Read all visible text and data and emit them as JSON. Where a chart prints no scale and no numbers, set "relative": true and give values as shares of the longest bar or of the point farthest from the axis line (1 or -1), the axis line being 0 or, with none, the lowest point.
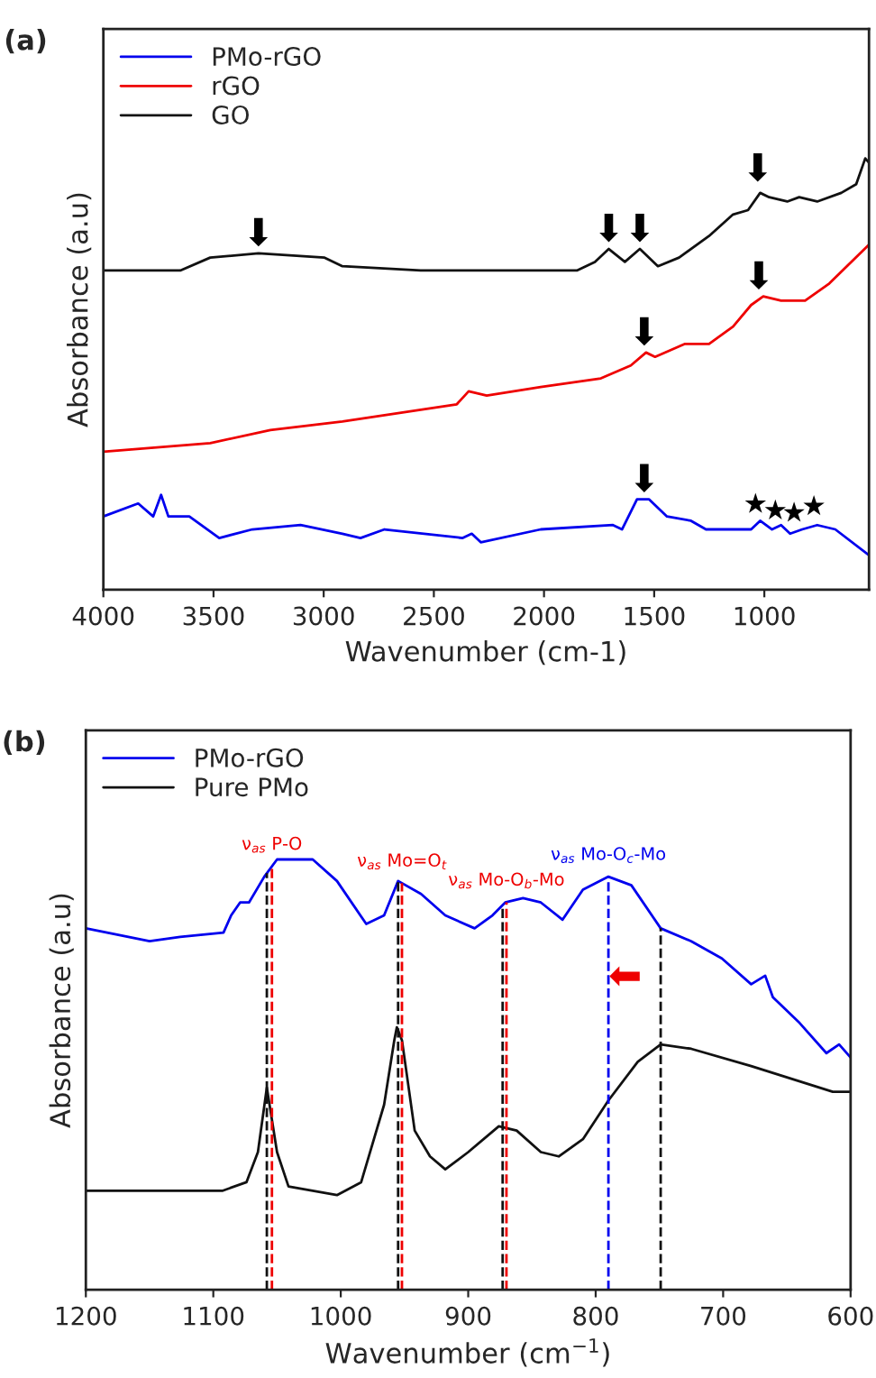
{
  "chart_data": [
    {
      "type": "line",
      "title": "(a)",
      "xlabel": "Wavenumber (cm-1)",
      "ylabel": "Absorbance (a.u)",
      "relative": true,
      "legend": "top left",
      "grid": false,
      "xlim": [
        4000,
        525
      ],
      "xticks": [
        4000,
        3500,
        3000,
        2500,
        2000,
        1500,
        1000
      ],
      "series": [
        {
          "name": "PMo-rGO",
          "color": "#0000ee",
          "x": [
            4000,
            3842,
            3774,
            3738,
            3705,
            3610,
            3474,
            3324,
            3105,
            2915,
            2833,
            2724,
            2369,
            2328,
            2287,
            2015,
            1687,
            1646,
            1578,
            1524,
            1442,
            1333,
            1265,
            1060,
            1019,
            965,
            924,
            883,
            828,
            760,
            678,
            525
          ],
          "values": [
            0.17,
            0.2,
            0.17,
            0.22,
            0.17,
            0.17,
            0.12,
            0.14,
            0.15,
            0.13,
            0.12,
            0.14,
            0.12,
            0.13,
            0.11,
            0.14,
            0.15,
            0.14,
            0.21,
            0.21,
            0.17,
            0.16,
            0.14,
            0.14,
            0.16,
            0.14,
            0.15,
            0.13,
            0.14,
            0.15,
            0.14,
            0.08
          ]
        },
        {
          "name": "rGO",
          "color": "#ee0000",
          "x": [
            4000,
            3515,
            3242,
            2915,
            2396,
            2342,
            2260,
            2015,
            1742,
            1606,
            1537,
            1496,
            1360,
            1251,
            1142,
            1060,
            1005,
            924,
            815,
            705,
            525
          ],
          "values": [
            0.32,
            0.34,
            0.37,
            0.39,
            0.43,
            0.46,
            0.45,
            0.47,
            0.49,
            0.52,
            0.55,
            0.54,
            0.57,
            0.57,
            0.61,
            0.66,
            0.68,
            0.67,
            0.67,
            0.71,
            0.8
          ]
        },
        {
          "name": "GO",
          "color": "#111111",
          "x": [
            4000,
            3651,
            3515,
            3296,
            2996,
            2915,
            2560,
            2287,
            1851,
            1769,
            1706,
            1633,
            1565,
            1483,
            1387,
            1251,
            1142,
            1074,
            1019,
            978,
            896,
            842,
            760,
            651,
            583,
            542,
            525
          ],
          "values": [
            0.74,
            0.74,
            0.77,
            0.78,
            0.77,
            0.75,
            0.74,
            0.74,
            0.74,
            0.76,
            0.79,
            0.76,
            0.79,
            0.75,
            0.77,
            0.82,
            0.87,
            0.88,
            0.92,
            0.91,
            0.9,
            0.91,
            0.9,
            0.92,
            0.94,
            1.0,
            0.99
          ]
        }
      ],
      "annotations": [
        {
          "text": "⬇",
          "x": 3296,
          "y": 0.78
        },
        {
          "text": "⬇",
          "x": 1706,
          "y": 0.79
        },
        {
          "text": "⬇",
          "x": 1565,
          "y": 0.79
        },
        {
          "text": "⬇",
          "x": 1030,
          "y": 0.93
        },
        {
          "text": "⬇",
          "x": 1545,
          "y": 0.55
        },
        {
          "text": "⬇",
          "x": 1025,
          "y": 0.68
        },
        {
          "text": "⬇",
          "x": 1545,
          "y": 0.21
        },
        {
          "text": "★",
          "x": 1040,
          "y": 0.165
        },
        {
          "text": "★",
          "x": 950,
          "y": 0.15
        },
        {
          "text": "★",
          "x": 865,
          "y": 0.145
        },
        {
          "text": "★",
          "x": 775,
          "y": 0.16
        }
      ]
    },
    {
      "type": "line",
      "title": "(b)",
      "xlabel": "Wavenumber (cm$^{−1}$)",
      "ylabel": "Absorbance (a.u)",
      "relative": true,
      "legend": "top left",
      "grid": false,
      "xlim": [
        1200,
        600
      ],
      "xticks": [
        1200,
        1100,
        1000,
        900,
        800,
        700,
        600
      ],
      "series": [
        {
          "name": "PMo-rGO",
          "color": "#0000ee",
          "x": [
            1200,
            1150,
            1126,
            1092,
            1086,
            1079,
            1072,
            1060,
            1050,
            1022,
            1003,
            980,
            966,
            955,
            937,
            918,
            895,
            881,
            871,
            857,
            843,
            826,
            810,
            790,
            772,
            749,
            725,
            701,
            678,
            667,
            661,
            640,
            619,
            609,
            600
          ],
          "values": [
            0.84,
            0.81,
            0.82,
            0.83,
            0.87,
            0.9,
            0.9,
            0.96,
            1.0,
            1.0,
            0.95,
            0.85,
            0.87,
            0.95,
            0.92,
            0.87,
            0.84,
            0.87,
            0.9,
            0.91,
            0.9,
            0.86,
            0.93,
            0.96,
            0.94,
            0.84,
            0.81,
            0.77,
            0.71,
            0.73,
            0.68,
            0.62,
            0.55,
            0.57,
            0.54
          ]
        },
        {
          "name": "Pure PMo",
          "color": "#111111",
          "x": [
            1200,
            1093,
            1074,
            1065,
            1058,
            1050,
            1041,
            1022,
            1003,
            984,
            966,
            958,
            956,
            952,
            942,
            930,
            918,
            900,
            876,
            862,
            843,
            829,
            810,
            790,
            767,
            749,
            725,
            678,
            614,
            600
          ],
          "values": [
            0.23,
            0.23,
            0.25,
            0.32,
            0.47,
            0.32,
            0.24,
            0.23,
            0.22,
            0.25,
            0.43,
            0.58,
            0.61,
            0.58,
            0.37,
            0.31,
            0.28,
            0.32,
            0.38,
            0.37,
            0.32,
            0.31,
            0.35,
            0.44,
            0.53,
            0.57,
            0.56,
            0.52,
            0.46,
            0.46
          ]
        }
      ],
      "ref_lines": [
        {
          "axis": "x",
          "value": 1058,
          "color": "#111111",
          "line_style": "dashed"
        },
        {
          "axis": "x",
          "value": 1054,
          "color": "#ee0000",
          "line_style": "dashed",
          "label": "ν$_{as}$ P-O"
        },
        {
          "axis": "x",
          "value": 955,
          "color": "#111111",
          "line_style": "dashed"
        },
        {
          "axis": "x",
          "value": 952,
          "color": "#ee0000",
          "line_style": "dashed",
          "label": "ν$_{as}$ Mo=O$_{t}$"
        },
        {
          "axis": "x",
          "value": 873,
          "color": "#111111",
          "line_style": "dashed"
        },
        {
          "axis": "x",
          "value": 870,
          "color": "#ee0000",
          "line_style": "dashed",
          "label": "ν$_{as}$ Mo-O$_{b}$-Mo"
        },
        {
          "axis": "x",
          "value": 790,
          "color": "#0000ee",
          "line_style": "dashed",
          "label": "ν$_{as}$ Mo-O$_{c}$-Mo"
        },
        {
          "axis": "x",
          "value": 749,
          "color": "#111111",
          "line_style": "dashed"
        }
      ],
      "annotations": [
        {
          "text": "⬅",
          "x": 790,
          "y": 0.725
        }
      ]
    }
  ]
}
